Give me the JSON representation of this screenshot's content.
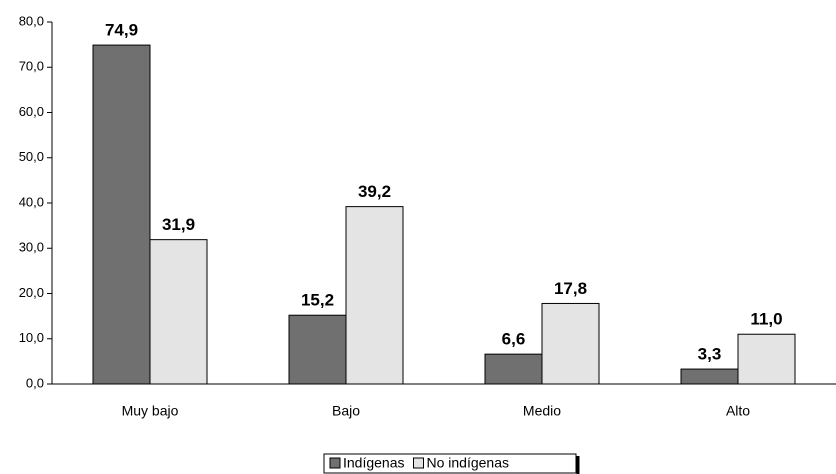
{
  "chart_data": {
    "type": "bar",
    "categories": [
      "Muy bajo",
      "Bajo",
      "Medio",
      "Alto"
    ],
    "series": [
      {
        "name": "Indígenas",
        "color": "#707070",
        "values": [
          74.9,
          15.2,
          6.6,
          3.3
        ],
        "value_labels": [
          "74,9",
          "15,2",
          "6,6",
          "3,3"
        ]
      },
      {
        "name": "No indígenas",
        "color": "#e4e4e4",
        "values": [
          31.9,
          39.2,
          17.8,
          11.0
        ],
        "value_labels": [
          "31,9",
          "39,2",
          "17,8",
          "11,0"
        ]
      }
    ],
    "ylim": [
      0,
      80
    ],
    "yticks": [
      {
        "value": 0,
        "label": "0,0"
      },
      {
        "value": 10,
        "label": "10,0"
      },
      {
        "value": 20,
        "label": "20,0"
      },
      {
        "value": 30,
        "label": "30,0"
      },
      {
        "value": 40,
        "label": "40,0"
      },
      {
        "value": 50,
        "label": "50,0"
      },
      {
        "value": 60,
        "label": "60,0"
      },
      {
        "value": 70,
        "label": "70,0"
      },
      {
        "value": 80,
        "label": "80,0"
      }
    ]
  }
}
